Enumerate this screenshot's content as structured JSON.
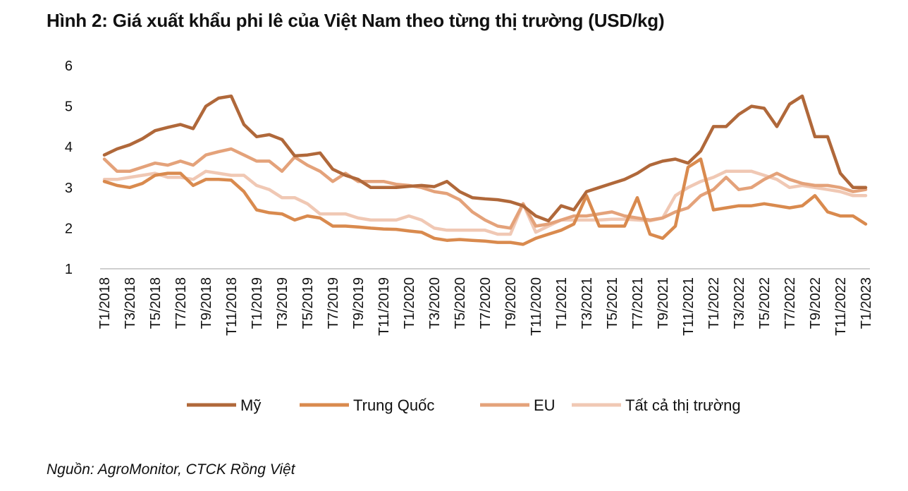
{
  "title": "Hình 2: Giá xuất khẩu phi lê của Việt Nam theo từng thị trường (USD/kg)",
  "source": "Nguồn: AgroMonitor, CTCK Rồng Việt",
  "chart_data": {
    "type": "line",
    "title": "Hình 2: Giá xuất khẩu phi lê của Việt Nam theo từng thị trường (USD/kg)",
    "xlabel": "",
    "ylabel": "",
    "ylim": [
      1,
      6
    ],
    "yticks": [
      1,
      2,
      3,
      4,
      5,
      6
    ],
    "grid": false,
    "legend_position": "bottom",
    "x": [
      "T1/2018",
      "T2/2018",
      "T3/2018",
      "T4/2018",
      "T5/2018",
      "T6/2018",
      "T7/2018",
      "T8/2018",
      "T9/2018",
      "T10/2018",
      "T11/2018",
      "T12/2018",
      "T1/2019",
      "T2/2019",
      "T3/2019",
      "T4/2019",
      "T5/2019",
      "T6/2019",
      "T7/2019",
      "T8/2019",
      "T9/2019",
      "T10/2019",
      "T11/2019",
      "T12/2019",
      "T1/2020",
      "T2/2020",
      "T3/2020",
      "T4/2020",
      "T5/2020",
      "T6/2020",
      "T7/2020",
      "T8/2020",
      "T9/2020",
      "T10/2020",
      "T11/2020",
      "T12/2020",
      "T1/2021",
      "T2/2021",
      "T3/2021",
      "T4/2021",
      "T5/2021",
      "T6/2021",
      "T7/2021",
      "T8/2021",
      "T9/2021",
      "T10/2021",
      "T11/2021",
      "T12/2021",
      "T1/2022",
      "T2/2022",
      "T3/2022",
      "T4/2022",
      "T5/2022",
      "T6/2022",
      "T7/2022",
      "T8/2022",
      "T9/2022",
      "T10/2022",
      "T11/2022",
      "T12/2022",
      "T1/2023"
    ],
    "xtick_labels": [
      "T1/2018",
      "T3/2018",
      "T5/2018",
      "T7/2018",
      "T9/2018",
      "T11/2018",
      "T1/2019",
      "T3/2019",
      "T5/2019",
      "T7/2019",
      "T9/2019",
      "T11/2019",
      "T1/2020",
      "T3/2020",
      "T5/2020",
      "T7/2020",
      "T9/2020",
      "T11/2020",
      "T1/2021",
      "T3/2021",
      "T5/2021",
      "T7/2021",
      "T9/2021",
      "T11/2021",
      "T1/2022",
      "T3/2022",
      "T5/2022",
      "T7/2022",
      "T9/2022",
      "T11/2022",
      "T1/2023"
    ],
    "series": [
      {
        "name": "Mỹ",
        "color": "#b0683a",
        "values": [
          3.8,
          3.95,
          4.05,
          4.2,
          4.4,
          4.48,
          4.55,
          4.45,
          5.0,
          5.2,
          5.25,
          4.55,
          4.25,
          4.3,
          4.18,
          3.78,
          3.8,
          3.85,
          3.45,
          3.3,
          3.2,
          3.0,
          3.0,
          3.0,
          3.03,
          3.05,
          3.02,
          3.15,
          2.9,
          2.75,
          2.72,
          2.7,
          2.65,
          2.55,
          2.3,
          2.18,
          2.55,
          2.45,
          2.9,
          3.0,
          3.1,
          3.2,
          3.35,
          3.55,
          3.65,
          3.7,
          3.6,
          3.9,
          4.5,
          4.5,
          4.8,
          5.0,
          4.95,
          4.5,
          5.05,
          5.25,
          4.25,
          4.25,
          3.35,
          3.0,
          3.0
        ]
      },
      {
        "name": "Trung Quốc",
        "color": "#d98a4e",
        "values": [
          3.15,
          3.05,
          3.0,
          3.1,
          3.3,
          3.35,
          3.35,
          3.05,
          3.2,
          3.2,
          3.18,
          2.9,
          2.45,
          2.38,
          2.35,
          2.2,
          2.3,
          2.25,
          2.05,
          2.05,
          2.03,
          2.0,
          1.98,
          1.97,
          1.93,
          1.9,
          1.75,
          1.7,
          1.72,
          1.7,
          1.68,
          1.65,
          1.65,
          1.6,
          1.75,
          1.85,
          1.95,
          2.1,
          2.8,
          2.05,
          2.05,
          2.05,
          2.75,
          1.85,
          1.75,
          2.05,
          3.5,
          3.7,
          2.45,
          2.5,
          2.55,
          2.55,
          2.6,
          2.55,
          2.5,
          2.55,
          2.8,
          2.4,
          2.3,
          2.3,
          2.1
        ]
      },
      {
        "name": "EU",
        "color": "#e4a27a",
        "values": [
          3.7,
          3.4,
          3.4,
          3.5,
          3.6,
          3.55,
          3.65,
          3.55,
          3.8,
          3.88,
          3.95,
          3.8,
          3.65,
          3.65,
          3.4,
          3.75,
          3.55,
          3.4,
          3.15,
          3.35,
          3.15,
          3.15,
          3.15,
          3.08,
          3.05,
          3.0,
          2.9,
          2.85,
          2.7,
          2.4,
          2.2,
          2.05,
          2.0,
          2.6,
          2.05,
          2.1,
          2.2,
          2.3,
          2.3,
          2.35,
          2.4,
          2.3,
          2.25,
          2.2,
          2.25,
          2.4,
          2.5,
          2.8,
          2.95,
          3.25,
          2.95,
          3.0,
          3.2,
          3.35,
          3.2,
          3.1,
          3.05,
          3.05,
          3.0,
          2.9,
          2.95
        ]
      },
      {
        "name": "Tất cả thị trường",
        "color": "#f0c8b4",
        "values": [
          3.2,
          3.2,
          3.25,
          3.3,
          3.35,
          3.25,
          3.25,
          3.2,
          3.4,
          3.35,
          3.3,
          3.3,
          3.05,
          2.95,
          2.75,
          2.75,
          2.6,
          2.35,
          2.35,
          2.35,
          2.25,
          2.2,
          2.2,
          2.2,
          2.3,
          2.2,
          2.0,
          1.95,
          1.95,
          1.95,
          1.95,
          1.85,
          1.85,
          2.6,
          1.9,
          2.05,
          2.2,
          2.2,
          2.2,
          2.2,
          2.22,
          2.22,
          2.2,
          2.18,
          2.25,
          2.8,
          3.0,
          3.15,
          3.25,
          3.4,
          3.4,
          3.4,
          3.3,
          3.2,
          3.0,
          3.05,
          3.0,
          2.95,
          2.9,
          2.8,
          2.8
        ]
      }
    ]
  }
}
